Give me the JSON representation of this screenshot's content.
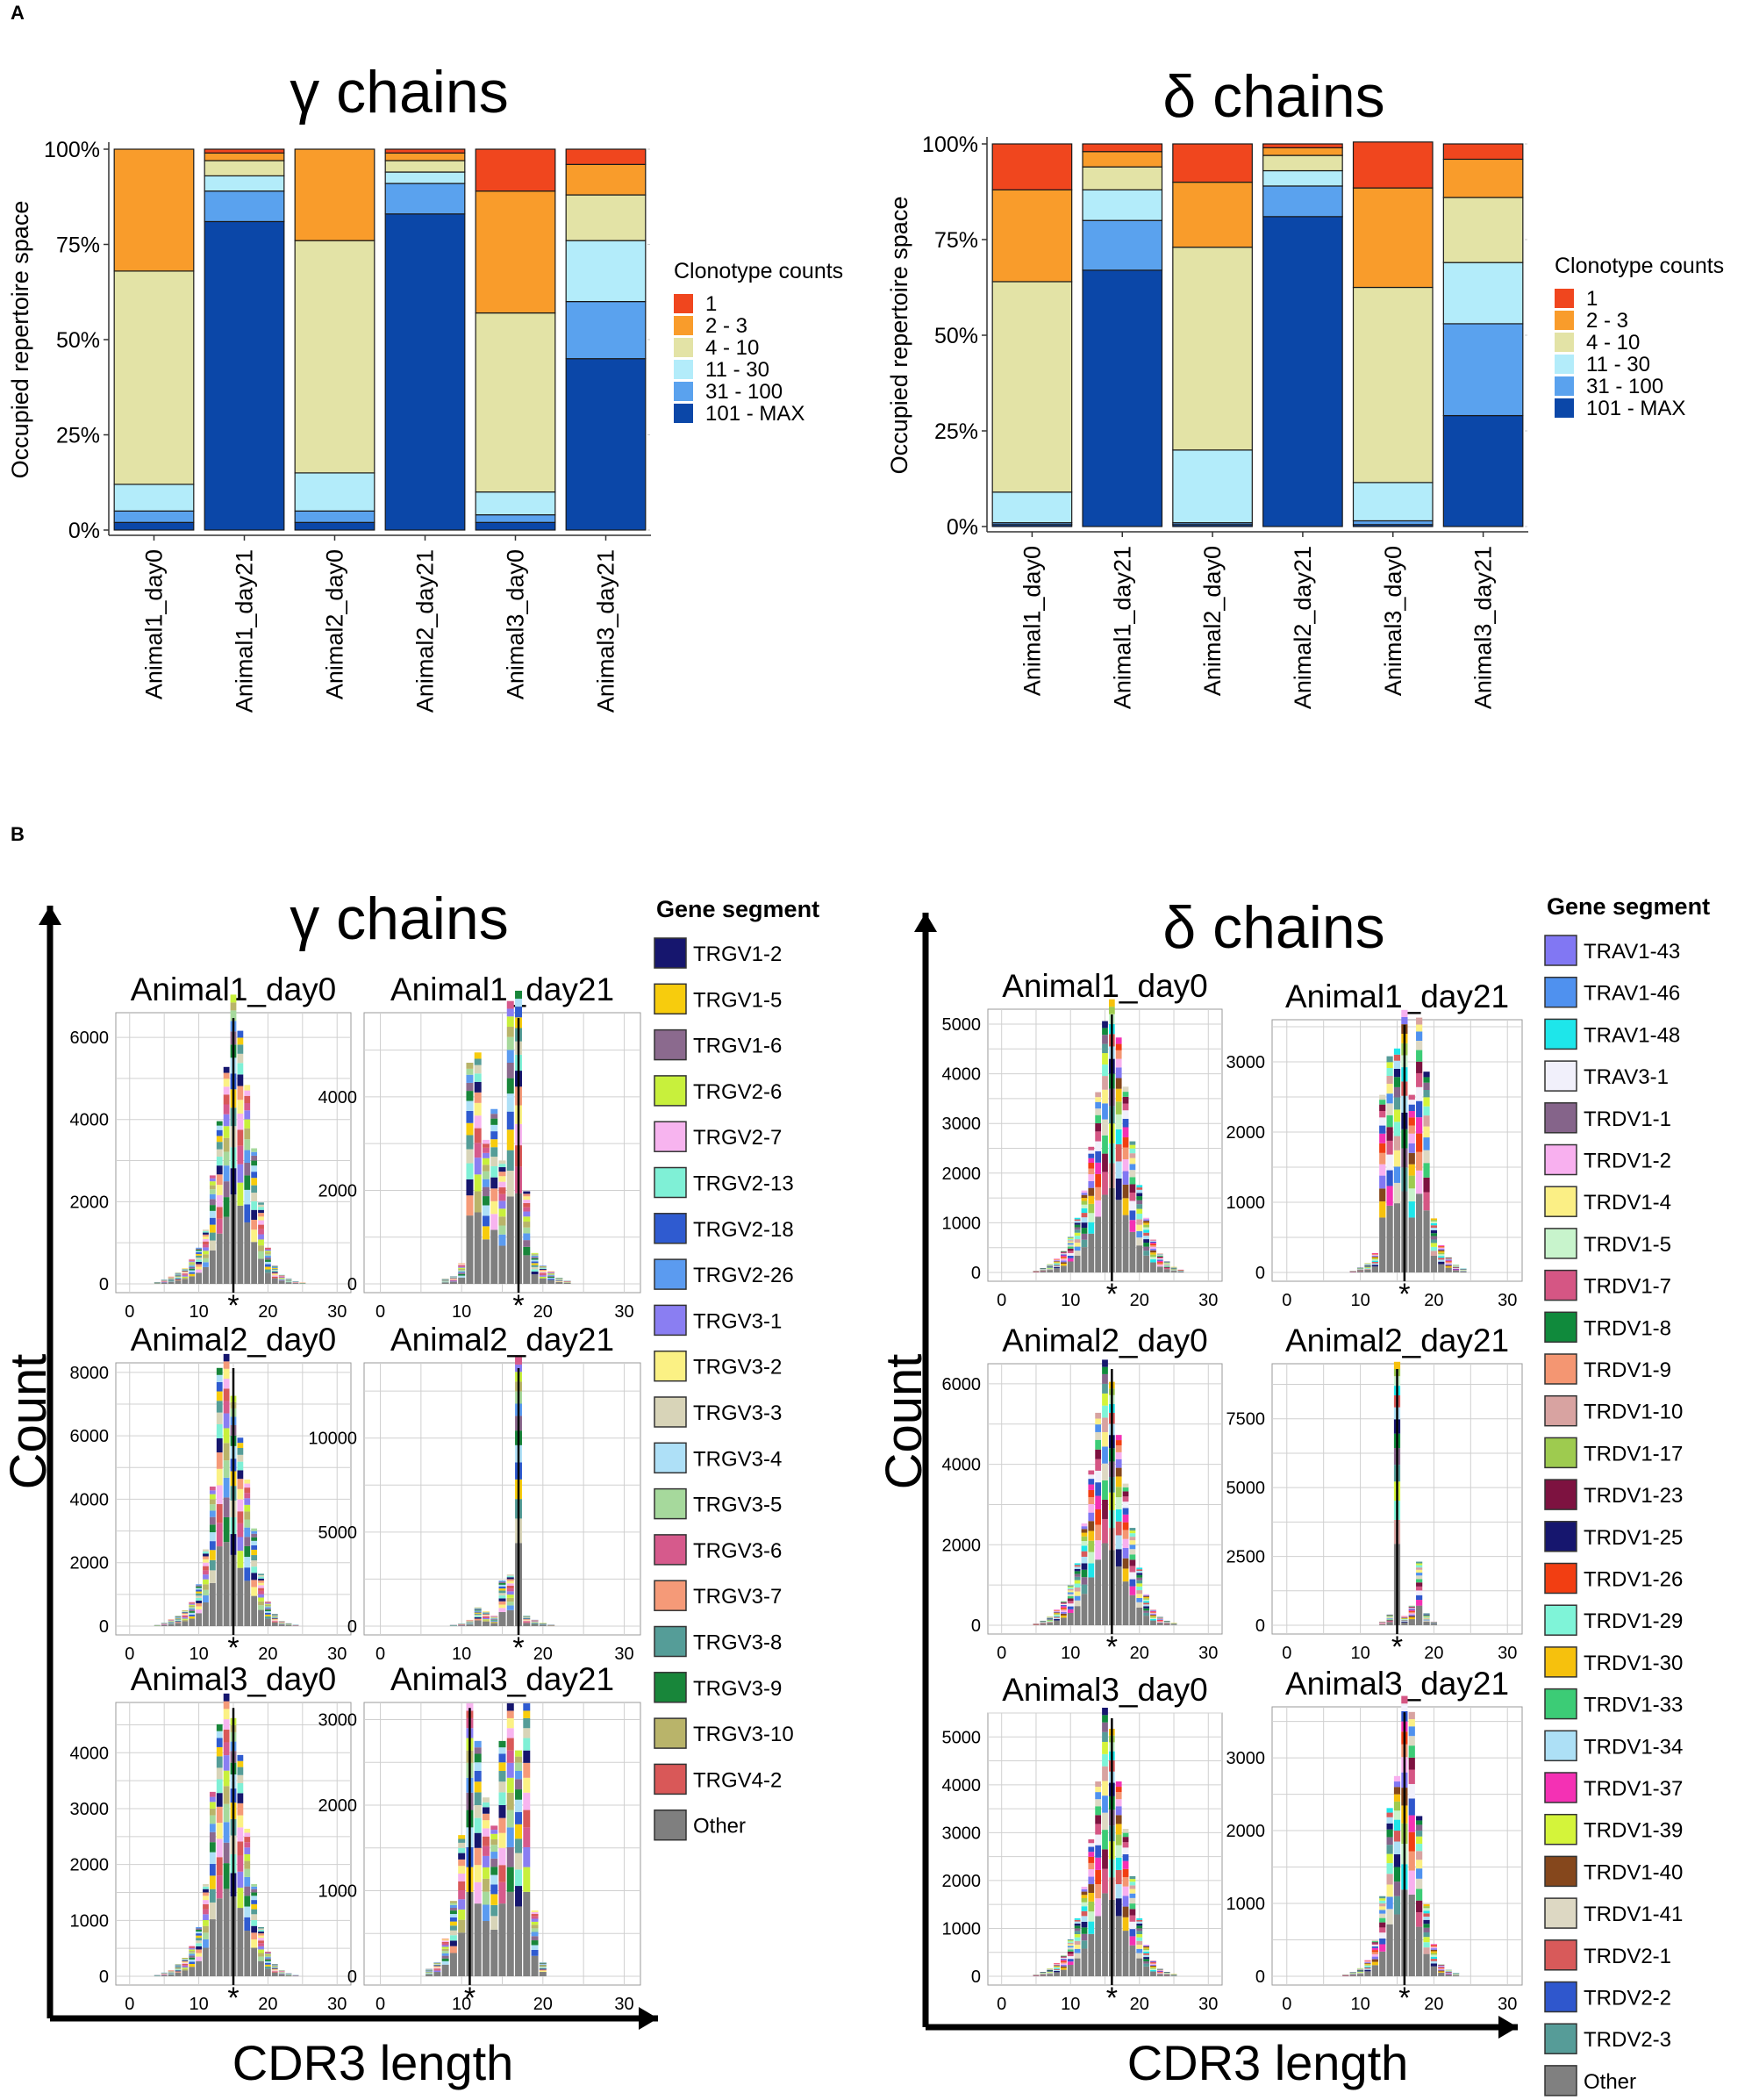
{
  "panel_labels": {
    "A": "A",
    "B": "B"
  },
  "chart_data": [
    {
      "id": "A-gamma",
      "type": "bar",
      "stacked": true,
      "title": "γ chains",
      "ylabel": "Occupied repertoire space",
      "ylim": [
        0,
        100
      ],
      "yticks": [
        0,
        25,
        50,
        75,
        100
      ],
      "ytick_labels": [
        "0%",
        "25%",
        "50%",
        "75%",
        "100%"
      ],
      "categories": [
        "Animal1_day0",
        "Animal1_day21",
        "Animal2_day0",
        "Animal2_day21",
        "Animal3_day0",
        "Animal3_day21"
      ],
      "legend_title": "Clonotype counts",
      "series": [
        {
          "name": "101 - MAX",
          "color": "#0b47a8",
          "values": [
            2,
            81,
            2,
            83,
            2,
            45
          ]
        },
        {
          "name": "31 - 100",
          "color": "#5aa2ee",
          "values": [
            3,
            8,
            3,
            8,
            2,
            15
          ]
        },
        {
          "name": "11 - 30",
          "color": "#b3ecfa",
          "values": [
            7,
            4,
            10,
            3,
            6,
            16
          ]
        },
        {
          "name": "4 - 10",
          "color": "#e3e3a6",
          "values": [
            56,
            4,
            61,
            3,
            47,
            12
          ]
        },
        {
          "name": "2 - 3",
          "color": "#f99c2b",
          "values": [
            32,
            2,
            24,
            2,
            32,
            8
          ]
        },
        {
          "name": "1",
          "color": "#f0461e",
          "values": [
            0,
            1,
            0,
            1,
            11,
            4
          ]
        }
      ]
    },
    {
      "id": "A-delta",
      "type": "bar",
      "stacked": true,
      "title": "δ chains",
      "ylabel": "Occupied repertoire space",
      "ylim": [
        0,
        100
      ],
      "yticks": [
        0,
        25,
        50,
        75,
        100
      ],
      "ytick_labels": [
        "0%",
        "25%",
        "50%",
        "75%",
        "100%"
      ],
      "categories": [
        "Animal1_day0",
        "Animal1_day21",
        "Animal2_day0",
        "Animal2_day21",
        "Animal3_day0",
        "Animal3_day21"
      ],
      "legend_title": "Clonotype counts",
      "series": [
        {
          "name": "101 - MAX",
          "color": "#0b47a8",
          "values": [
            0.5,
            67,
            0.5,
            81,
            0.5,
            29
          ]
        },
        {
          "name": "31 - 100",
          "color": "#5aa2ee",
          "values": [
            0.5,
            13,
            0.5,
            8,
            1,
            24
          ]
        },
        {
          "name": "11 - 30",
          "color": "#b3ecfa",
          "values": [
            8,
            8,
            19,
            4,
            10,
            16
          ]
        },
        {
          "name": "4 - 10",
          "color": "#e3e3a6",
          "values": [
            55,
            6,
            53,
            4,
            51,
            17
          ]
        },
        {
          "name": "2 - 3",
          "color": "#f99c2b",
          "values": [
            24,
            4,
            17,
            2,
            26,
            10
          ]
        },
        {
          "name": "1",
          "color": "#f0461e",
          "values": [
            12,
            2,
            10,
            1,
            12,
            4
          ]
        }
      ]
    },
    {
      "id": "B-gamma",
      "type": "bar",
      "subtype": "stacked-histogram-panel",
      "title": "γ chains",
      "ylabel": "Count",
      "xlabel": "CDR3 length",
      "xlim": [
        0,
        30
      ],
      "xticks": [
        0,
        10,
        20,
        30
      ],
      "legend_title": "Gene segment",
      "legend": [
        {
          "name": "TRGV1-2",
          "color": "#16166e"
        },
        {
          "name": "TRGV1-5",
          "color": "#f7cc0d"
        },
        {
          "name": "TRGV1-6",
          "color": "#8b6a8e"
        },
        {
          "name": "TRGV2-6",
          "color": "#c8f03c"
        },
        {
          "name": "TRGV2-7",
          "color": "#f7b4ef"
        },
        {
          "name": "TRGV2-13",
          "color": "#7ff0d6"
        },
        {
          "name": "TRGV2-18",
          "color": "#2f5bd0"
        },
        {
          "name": "TRGV2-26",
          "color": "#5b9bf0"
        },
        {
          "name": "TRGV3-1",
          "color": "#8a7ef2"
        },
        {
          "name": "TRGV3-2",
          "color": "#fbf184"
        },
        {
          "name": "TRGV3-3",
          "color": "#d8d4b8"
        },
        {
          "name": "TRGV3-4",
          "color": "#aee0f7"
        },
        {
          "name": "TRGV3-5",
          "color": "#a6d99c"
        },
        {
          "name": "TRGV3-6",
          "color": "#d65a8c"
        },
        {
          "name": "TRGV3-7",
          "color": "#f59a78"
        },
        {
          "name": "TRGV3-8",
          "color": "#559d98"
        },
        {
          "name": "TRGV3-9",
          "color": "#18863a"
        },
        {
          "name": "TRGV3-10",
          "color": "#b9b46a"
        },
        {
          "name": "TRGV4-2",
          "color": "#d95858"
        },
        {
          "name": "Other",
          "color": "#7f7f7f"
        }
      ],
      "panels": [
        {
          "title": "Animal1_day0",
          "ylim": [
            0,
            6600
          ],
          "yticks": [
            0,
            2000,
            4000,
            6000
          ],
          "marker": 15,
          "x": [
            4,
            5,
            6,
            7,
            8,
            9,
            10,
            11,
            12,
            13,
            14,
            15,
            16,
            17,
            18,
            19,
            20,
            21,
            22,
            23,
            24,
            25
          ],
          "y": [
            40,
            100,
            160,
            250,
            340,
            550,
            800,
            1200,
            2400,
            3600,
            4800,
            6400,
            5600,
            4400,
            3000,
            1800,
            800,
            400,
            200,
            120,
            60,
            30
          ]
        },
        {
          "title": "Animal1_day21",
          "ylim": [
            0,
            5800
          ],
          "yticks": [
            0,
            2000,
            4000
          ],
          "marker": 17,
          "x": [
            8,
            9,
            10,
            11,
            12,
            13,
            14,
            15,
            16,
            17,
            18,
            19,
            20,
            21,
            22,
            23
          ],
          "y": [
            100,
            150,
            400,
            4300,
            4500,
            2800,
            3400,
            2400,
            5500,
            5700,
            1800,
            600,
            350,
            250,
            120,
            60
          ]
        },
        {
          "title": "Animal2_day0",
          "ylim": [
            0,
            8300
          ],
          "yticks": [
            0,
            2000,
            4000,
            6000,
            8000
          ],
          "marker": 15,
          "x": [
            4,
            5,
            6,
            7,
            8,
            9,
            10,
            11,
            12,
            13,
            14,
            15,
            16,
            17,
            18,
            19,
            20,
            21,
            22,
            23,
            24
          ],
          "y": [
            30,
            100,
            200,
            300,
            450,
            700,
            1200,
            2200,
            4000,
            7400,
            7800,
            6600,
            5400,
            4200,
            2800,
            1500,
            700,
            350,
            150,
            80,
            40
          ]
        },
        {
          "title": "Animal2_day21",
          "ylim": [
            0,
            14000
          ],
          "yticks": [
            0,
            5000,
            10000
          ],
          "marker": 17,
          "x": [
            9,
            10,
            11,
            12,
            13,
            14,
            15,
            16,
            17,
            18,
            19,
            20,
            21
          ],
          "y": [
            60,
            120,
            300,
            900,
            700,
            500,
            2200,
            2500,
            13000,
            500,
            300,
            150,
            60
          ]
        },
        {
          "title": "Animal3_day0",
          "ylim": [
            0,
            4900
          ],
          "yticks": [
            0,
            1000,
            2000,
            3000,
            4000
          ],
          "marker": 15,
          "x": [
            4,
            5,
            6,
            7,
            8,
            9,
            10,
            11,
            12,
            13,
            14,
            15,
            16,
            17,
            18,
            19,
            20,
            21,
            22,
            23,
            24
          ],
          "y": [
            20,
            60,
            100,
            200,
            300,
            500,
            800,
            1500,
            3000,
            4100,
            4600,
            4200,
            3600,
            2400,
            1500,
            800,
            400,
            200,
            100,
            50,
            20
          ]
        },
        {
          "title": "Animal3_day21",
          "ylim": [
            0,
            3200
          ],
          "yticks": [
            0,
            1000,
            2000,
            3000
          ],
          "marker": 11,
          "x": [
            6,
            7,
            8,
            9,
            10,
            11,
            12,
            13,
            14,
            15,
            16,
            17,
            18,
            19,
            20
          ],
          "y": [
            80,
            150,
            400,
            800,
            1500,
            2900,
            2500,
            1900,
            1600,
            2500,
            2900,
            2400,
            2900,
            700,
            150
          ]
        }
      ]
    },
    {
      "id": "B-delta",
      "type": "bar",
      "subtype": "stacked-histogram-panel",
      "title": "δ chains",
      "ylabel": "Count",
      "xlabel": "CDR3 length",
      "xlim": [
        0,
        30
      ],
      "xticks": [
        0,
        10,
        20,
        30
      ],
      "legend_title": "Gene segment",
      "legend": [
        {
          "name": "TRAV1-43",
          "color": "#8177f3"
        },
        {
          "name": "TRAV1-46",
          "color": "#4f91ef"
        },
        {
          "name": "TRAV1-48",
          "color": "#1ee6ea"
        },
        {
          "name": "TRAV3-1",
          "color": "#f1f0fb"
        },
        {
          "name": "TRDV1-1",
          "color": "#85648a"
        },
        {
          "name": "TRDV1-2",
          "color": "#f8b0ef"
        },
        {
          "name": "TRDV1-4",
          "color": "#fbef85"
        },
        {
          "name": "TRDV1-5",
          "color": "#c8f4cc"
        },
        {
          "name": "TRDV1-7",
          "color": "#d55684"
        },
        {
          "name": "TRDV1-8",
          "color": "#108a3c"
        },
        {
          "name": "TRDV1-9",
          "color": "#f49672"
        },
        {
          "name": "TRDV1-10",
          "color": "#d8a3a1"
        },
        {
          "name": "TRDV1-17",
          "color": "#9ecb4f"
        },
        {
          "name": "TRDV1-23",
          "color": "#7d1240"
        },
        {
          "name": "TRDV1-25",
          "color": "#16166e"
        },
        {
          "name": "TRDV1-26",
          "color": "#f23e12"
        },
        {
          "name": "TRDV1-29",
          "color": "#7ff4d8"
        },
        {
          "name": "TRDV1-30",
          "color": "#f6c10d"
        },
        {
          "name": "TRDV1-33",
          "color": "#3ccc76"
        },
        {
          "name": "TRDV1-34",
          "color": "#ade0f6"
        },
        {
          "name": "TRDV1-37",
          "color": "#f431b4"
        },
        {
          "name": "TRDV1-39",
          "color": "#d4f43a"
        },
        {
          "name": "TRDV1-40",
          "color": "#85471c"
        },
        {
          "name": "TRDV1-41",
          "color": "#ddd8c3"
        },
        {
          "name": "TRDV2-1",
          "color": "#d85a5a"
        },
        {
          "name": "TRDV2-2",
          "color": "#2f57cd"
        },
        {
          "name": "TRDV2-3",
          "color": "#569c98"
        },
        {
          "name": "Other",
          "color": "#808080"
        }
      ],
      "panels": [
        {
          "title": "Animal1_day0",
          "ylim": [
            0,
            5300
          ],
          "yticks": [
            0,
            1000,
            2000,
            3000,
            4000,
            5000
          ],
          "marker": 16,
          "x": [
            5,
            6,
            7,
            8,
            9,
            10,
            11,
            12,
            13,
            14,
            15,
            16,
            17,
            18,
            19,
            20,
            21,
            22,
            23,
            24,
            25,
            26
          ],
          "y": [
            30,
            80,
            150,
            250,
            400,
            650,
            1000,
            1500,
            2300,
            3300,
            4600,
            5000,
            4300,
            3400,
            2400,
            1600,
            1000,
            600,
            350,
            200,
            100,
            50
          ]
        },
        {
          "title": "Animal1_day21",
          "ylim": [
            0,
            3600
          ],
          "yticks": [
            0,
            1000,
            2000,
            3000
          ],
          "marker": 16,
          "x": [
            9,
            10,
            11,
            12,
            13,
            14,
            15,
            16,
            17,
            18,
            19,
            20,
            21,
            22,
            23,
            24
          ],
          "y": [
            20,
            60,
            120,
            250,
            2300,
            2800,
            2900,
            3400,
            2300,
            3300,
            2600,
            700,
            350,
            200,
            100,
            50
          ]
        },
        {
          "title": "Animal2_day0",
          "ylim": [
            0,
            6500
          ],
          "yticks": [
            0,
            2000,
            4000,
            6000
          ],
          "marker": 16,
          "x": [
            5,
            6,
            7,
            8,
            9,
            10,
            11,
            12,
            13,
            14,
            15,
            16,
            17,
            18,
            19,
            20,
            21,
            22,
            23,
            24,
            25
          ],
          "y": [
            40,
            100,
            200,
            350,
            550,
            900,
            1400,
            2300,
            3500,
            4800,
            6000,
            5500,
            4300,
            3200,
            2200,
            1300,
            700,
            350,
            200,
            100,
            50
          ]
        },
        {
          "title": "Animal2_day21",
          "ylim": [
            0,
            9500
          ],
          "yticks": [
            0,
            2500,
            5000,
            7500
          ],
          "marker": 15,
          "x": [
            13,
            14,
            15,
            16,
            17,
            18,
            19,
            20
          ],
          "y": [
            120,
            350,
            8700,
            300,
            650,
            2100,
            400,
            120
          ]
        },
        {
          "title": "Animal3_day0",
          "ylim": [
            0,
            5500
          ],
          "yticks": [
            0,
            1000,
            2000,
            3000,
            4000,
            5000
          ],
          "marker": 16,
          "x": [
            5,
            6,
            7,
            8,
            9,
            10,
            11,
            12,
            13,
            14,
            15,
            16,
            17,
            18,
            19,
            20,
            21,
            22,
            23,
            24,
            25
          ],
          "y": [
            30,
            80,
            150,
            250,
            400,
            700,
            1100,
            1700,
            2600,
            3700,
            5100,
            4700,
            3700,
            2800,
            1900,
            1100,
            600,
            300,
            150,
            80,
            40
          ]
        },
        {
          "title": "Animal3_day21",
          "ylim": [
            0,
            3700
          ],
          "yticks": [
            0,
            1000,
            2000,
            3000
          ],
          "marker": 16,
          "x": [
            8,
            9,
            10,
            11,
            12,
            13,
            14,
            15,
            16,
            17,
            18,
            19,
            20,
            21,
            22,
            23
          ],
          "y": [
            20,
            50,
            100,
            200,
            450,
            1000,
            2100,
            2500,
            3500,
            3300,
            2000,
            900,
            400,
            150,
            80,
            40
          ]
        }
      ]
    }
  ]
}
